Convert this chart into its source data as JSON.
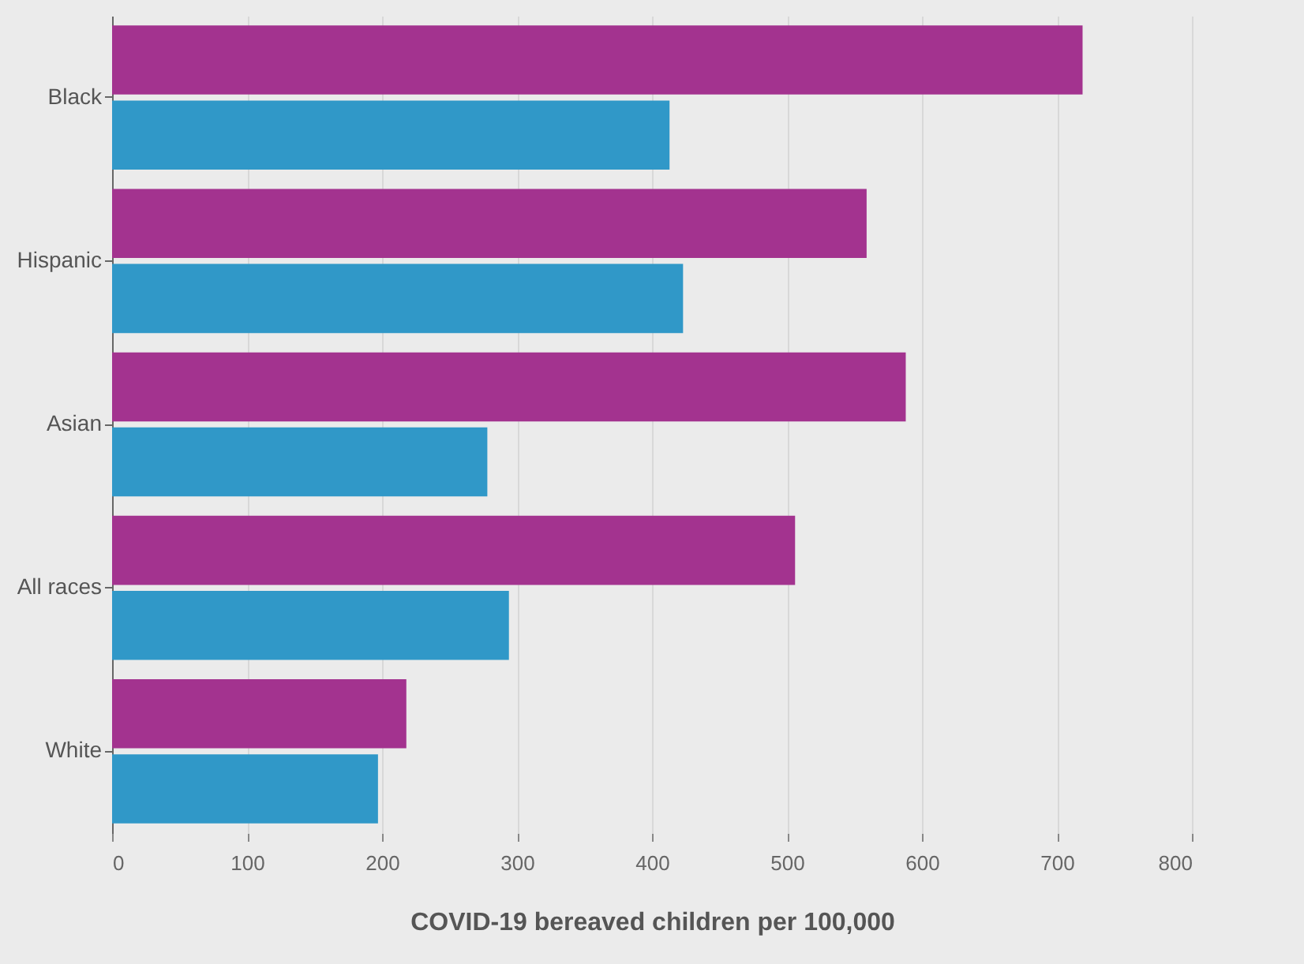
{
  "chart_data": {
    "type": "bar",
    "orientation": "horizontal",
    "xlabel": "COVID-19 bereaved children per 100,000",
    "categories": [
      "Black",
      "Hispanic",
      "Asian",
      "All races",
      "White"
    ],
    "series": [
      {
        "color": "#a3338f",
        "values": [
          719,
          559,
          588,
          506,
          218
        ]
      },
      {
        "color": "#3098c8",
        "values": [
          413,
          423,
          278,
          294,
          197
        ]
      }
    ],
    "xlim": [
      0,
      800
    ],
    "xticks": [
      0,
      100,
      200,
      300,
      400,
      500,
      600,
      700,
      800
    ],
    "grid": "x",
    "legend": false
  }
}
